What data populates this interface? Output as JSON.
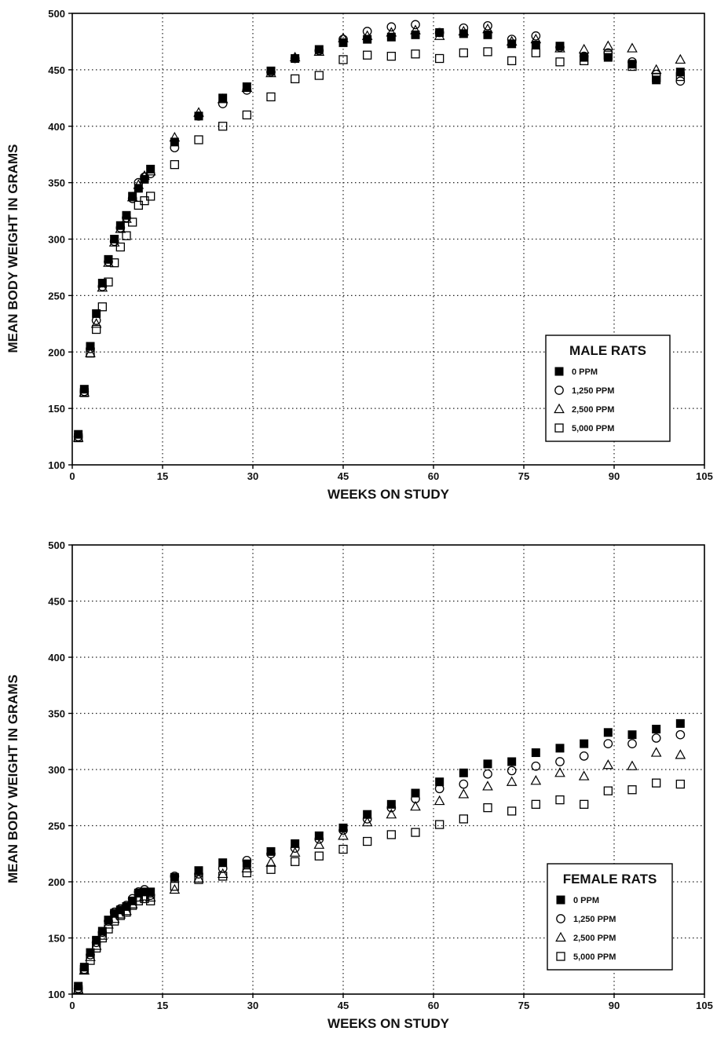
{
  "chart_data": [
    {
      "type": "scatter",
      "title": "",
      "xlabel": "WEEKS ON STUDY",
      "ylabel": "MEAN BODY WEIGHT IN GRAMS",
      "xlim": [
        0,
        105
      ],
      "ylim": [
        100,
        500
      ],
      "xticks": [
        "0",
        "15",
        "30",
        "45",
        "60",
        "75",
        "90",
        "105"
      ],
      "yticks": [
        "100",
        "150",
        "200",
        "250",
        "300",
        "350",
        "400",
        "450",
        "500"
      ],
      "grid": true,
      "legend_position": "bottom-right",
      "legend_title": "MALE RATS",
      "series": [
        {
          "name": "0 PPM",
          "marker": "filled-square",
          "x": [
            1,
            2,
            3,
            4,
            5,
            6,
            7,
            8,
            9,
            10,
            11,
            12,
            13,
            17,
            21,
            25,
            29,
            33,
            37,
            41,
            45,
            49,
            53,
            57,
            61,
            65,
            69,
            73,
            77,
            81,
            85,
            89,
            93,
            97,
            101
          ],
          "y": [
            127,
            167,
            205,
            234,
            261,
            282,
            300,
            312,
            321,
            338,
            345,
            353,
            362,
            386,
            409,
            425,
            435,
            449,
            460,
            468,
            474,
            477,
            479,
            481,
            483,
            482,
            481,
            473,
            472,
            471,
            461,
            461,
            455,
            441,
            448
          ]
        },
        {
          "name": "1,250 PPM",
          "marker": "open-circle",
          "x": [
            1,
            2,
            3,
            4,
            5,
            6,
            7,
            8,
            9,
            10,
            11,
            12,
            13,
            17,
            21,
            25,
            29,
            33,
            37,
            41,
            45,
            49,
            53,
            57,
            61,
            65,
            69,
            73,
            77,
            81,
            85,
            89,
            93,
            97,
            101
          ],
          "y": [
            125,
            165,
            203,
            228,
            258,
            280,
            298,
            310,
            319,
            336,
            350,
            355,
            358,
            381,
            409,
            420,
            432,
            448,
            460,
            467,
            477,
            484,
            488,
            490,
            483,
            487,
            489,
            477,
            480,
            470,
            462,
            465,
            457,
            446,
            440
          ]
        },
        {
          "name": "2,500 PPM",
          "marker": "open-triangle",
          "x": [
            1,
            2,
            3,
            4,
            5,
            6,
            7,
            8,
            9,
            10,
            11,
            12,
            13,
            17,
            21,
            25,
            29,
            33,
            37,
            41,
            45,
            49,
            53,
            57,
            61,
            65,
            69,
            73,
            77,
            81,
            85,
            89,
            93,
            97,
            101
          ],
          "y": [
            124,
            164,
            199,
            225,
            257,
            279,
            297,
            309,
            318,
            337,
            348,
            356,
            360,
            390,
            412,
            424,
            434,
            447,
            461,
            466,
            478,
            480,
            483,
            485,
            480,
            484,
            486,
            475,
            477,
            469,
            468,
            471,
            469,
            450,
            459
          ]
        },
        {
          "name": "5,000 PPM",
          "marker": "open-square",
          "x": [
            1,
            2,
            3,
            4,
            5,
            6,
            7,
            8,
            9,
            10,
            11,
            12,
            13,
            17,
            21,
            25,
            29,
            33,
            37,
            41,
            45,
            49,
            53,
            57,
            61,
            65,
            69,
            73,
            77,
            81,
            85,
            89,
            93,
            97,
            101
          ],
          "y": [
            124,
            164,
            199,
            220,
            240,
            262,
            279,
            293,
            303,
            315,
            330,
            334,
            338,
            366,
            388,
            400,
            410,
            426,
            442,
            445,
            459,
            463,
            462,
            464,
            460,
            465,
            466,
            458,
            465,
            457,
            458,
            463,
            453,
            443,
            444
          ]
        }
      ]
    },
    {
      "type": "scatter",
      "title": "",
      "xlabel": "WEEKS ON STUDY",
      "ylabel": "MEAN BODY WEIGHT IN GRAMS",
      "xlim": [
        0,
        105
      ],
      "ylim": [
        100,
        500
      ],
      "xticks": [
        "0",
        "15",
        "30",
        "45",
        "60",
        "75",
        "90",
        "105"
      ],
      "yticks": [
        "100",
        "150",
        "200",
        "250",
        "300",
        "350",
        "400",
        "450",
        "500"
      ],
      "grid": true,
      "legend_position": "bottom-right",
      "legend_title": "FEMALE RATS",
      "series": [
        {
          "name": "0 PPM",
          "marker": "filled-square",
          "x": [
            1,
            2,
            3,
            4,
            5,
            6,
            7,
            8,
            9,
            10,
            11,
            12,
            13,
            17,
            21,
            25,
            29,
            33,
            37,
            41,
            45,
            49,
            53,
            57,
            61,
            65,
            69,
            73,
            77,
            81,
            85,
            89,
            93,
            97,
            101
          ],
          "y": [
            107,
            124,
            137,
            148,
            156,
            166,
            172,
            175,
            178,
            183,
            190,
            191,
            191,
            204,
            210,
            217,
            216,
            227,
            234,
            241,
            248,
            260,
            269,
            279,
            289,
            297,
            305,
            307,
            315,
            319,
            323,
            333,
            331,
            336,
            341
          ]
        },
        {
          "name": "1,250 PPM",
          "marker": "open-circle",
          "x": [
            1,
            2,
            3,
            4,
            5,
            6,
            7,
            8,
            9,
            10,
            11,
            12,
            13,
            17,
            21,
            25,
            29,
            33,
            37,
            41,
            45,
            49,
            53,
            57,
            61,
            65,
            69,
            73,
            77,
            81,
            85,
            89,
            93,
            97,
            101
          ],
          "y": [
            105,
            122,
            135,
            146,
            155,
            165,
            173,
            176,
            179,
            185,
            191,
            193,
            188,
            205,
            207,
            212,
            219,
            225,
            230,
            238,
            246,
            256,
            266,
            274,
            283,
            287,
            296,
            299,
            303,
            307,
            312,
            323,
            323,
            328,
            331
          ]
        },
        {
          "name": "2,500 PPM",
          "marker": "open-triangle",
          "x": [
            1,
            2,
            3,
            4,
            5,
            6,
            7,
            8,
            9,
            10,
            11,
            12,
            13,
            17,
            21,
            25,
            29,
            33,
            37,
            41,
            45,
            49,
            53,
            57,
            61,
            65,
            69,
            73,
            77,
            81,
            85,
            89,
            93,
            97,
            101
          ],
          "y": [
            104,
            121,
            133,
            143,
            152,
            162,
            167,
            171,
            174,
            180,
            186,
            187,
            186,
            193,
            203,
            207,
            212,
            217,
            226,
            233,
            241,
            253,
            260,
            267,
            272,
            278,
            285,
            289,
            290,
            297,
            294,
            304,
            303,
            315,
            313
          ]
        },
        {
          "name": "5,000 PPM",
          "marker": "open-square",
          "x": [
            1,
            2,
            3,
            4,
            5,
            6,
            7,
            8,
            9,
            10,
            11,
            12,
            13,
            17,
            21,
            25,
            29,
            33,
            37,
            41,
            45,
            49,
            53,
            57,
            61,
            65,
            69,
            73,
            77,
            81,
            85,
            89,
            93,
            97,
            101
          ],
          "y": [
            104,
            122,
            130,
            141,
            150,
            158,
            165,
            170,
            173,
            179,
            183,
            185,
            183,
            196,
            202,
            205,
            208,
            211,
            218,
            223,
            229,
            236,
            242,
            244,
            251,
            256,
            266,
            263,
            269,
            273,
            269,
            281,
            282,
            288,
            287
          ]
        }
      ]
    }
  ]
}
